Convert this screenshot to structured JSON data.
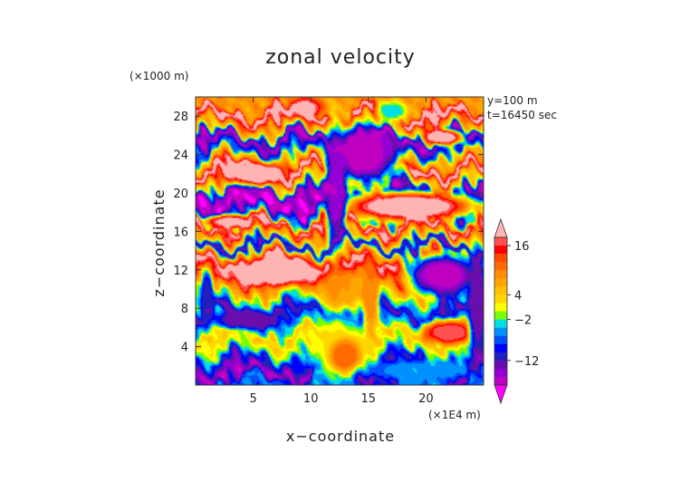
{
  "chart_data": {
    "type": "heatmap",
    "title": "zonal velocity",
    "xlabel": "x−coordinate",
    "ylabel": "z−coordinate",
    "x_unit_label": "(×1E4 m)",
    "y_unit_label": "(×1000 m)",
    "annotations": [
      "y=100 m",
      "t=16450 sec"
    ],
    "xlim": [
      0,
      25
    ],
    "ylim": [
      0,
      30
    ],
    "x_ticks": [
      5,
      10,
      15,
      20
    ],
    "y_ticks": [
      4,
      8,
      12,
      16,
      20,
      24,
      28
    ],
    "colorbar": {
      "tick_labels": [
        "16",
        "4",
        "−2",
        "−12"
      ],
      "tick_values": [
        16,
        4,
        -2,
        -12
      ],
      "levels": [
        22,
        18,
        16,
        14,
        12,
        10,
        8,
        6,
        4,
        2,
        0,
        -2,
        -4,
        -6,
        -8,
        -10,
        -12,
        -14,
        -16,
        -18,
        -22
      ],
      "colors": [
        "#ffb4b4",
        "#ff5050",
        "#ff0000",
        "#ff4a00",
        "#ff6a00",
        "#ff8c00",
        "#ffa500",
        "#ffc000",
        "#ffd700",
        "#ffff00",
        "#7cfc00",
        "#00e0e0",
        "#0090ff",
        "#0050ff",
        "#0000ff",
        "#2020c0",
        "#6a0dad",
        "#9400d3",
        "#c000c0",
        "#ff00ff"
      ],
      "extend": "both"
    },
    "bands": [
      {
        "z": 29.0,
        "v": 8
      },
      {
        "z": 28.0,
        "v": 20
      },
      {
        "z": 26.7,
        "v": 6
      },
      {
        "z": 25.5,
        "v": -16
      },
      {
        "z": 24.5,
        "v": -8
      },
      {
        "z": 23.5,
        "v": 6
      },
      {
        "z": 22.3,
        "v": 20
      },
      {
        "z": 21.2,
        "v": 4
      },
      {
        "z": 20.0,
        "v": -16
      },
      {
        "z": 18.8,
        "v": -18
      },
      {
        "z": 17.6,
        "v": -6
      },
      {
        "z": 16.5,
        "v": 18
      },
      {
        "z": 15.4,
        "v": 6
      },
      {
        "z": 14.5,
        "v": -12
      },
      {
        "z": 13.6,
        "v": 8
      },
      {
        "z": 12.6,
        "v": 20
      },
      {
        "z": 11.5,
        "v": 16
      },
      {
        "z": 10.2,
        "v": 8
      },
      {
        "z": 8.8,
        "v": -2
      },
      {
        "z": 7.5,
        "v": -12
      },
      {
        "z": 6.3,
        "v": -4
      },
      {
        "z": 5.0,
        "v": 4
      },
      {
        "z": 3.8,
        "v": 0
      },
      {
        "z": 2.5,
        "v": -10
      },
      {
        "z": 1.3,
        "v": -16
      },
      {
        "z": 0.2,
        "v": -6
      }
    ],
    "features": [
      {
        "x": 18.5,
        "z": 18.6,
        "rx": 6.5,
        "rz": 1.7,
        "v": 22
      },
      {
        "x": 7.0,
        "z": 11.8,
        "rx": 4.2,
        "rz": 1.6,
        "v": 22
      },
      {
        "x": 5.0,
        "z": 22.0,
        "rx": 3.0,
        "rz": 1.3,
        "v": 22
      },
      {
        "x": 21.5,
        "z": 25.8,
        "rx": 1.8,
        "rz": 0.9,
        "v": 22
      },
      {
        "x": 14.8,
        "z": 24.0,
        "rx": 3.2,
        "rz": 3.4,
        "v": -18
      },
      {
        "x": 12.2,
        "z": 20.5,
        "rx": 1.0,
        "rz": 7.5,
        "v": -16
      },
      {
        "x": 21.5,
        "z": 11.5,
        "rx": 3.5,
        "rz": 2.4,
        "v": -18
      },
      {
        "x": 12.8,
        "z": 10.0,
        "rx": 2.3,
        "rz": 2.2,
        "v": 8
      },
      {
        "x": 15.2,
        "z": 9.5,
        "rx": 0.8,
        "rz": 4.5,
        "v": 10
      },
      {
        "x": 22.0,
        "z": 5.5,
        "rx": 2.6,
        "rz": 1.4,
        "v": 18
      },
      {
        "x": 12.3,
        "z": 4.0,
        "rx": 2.8,
        "rz": 3.5,
        "v": 2
      },
      {
        "x": 13.0,
        "z": 3.0,
        "rx": 1.5,
        "rz": 2.0,
        "v": 12
      },
      {
        "x": 4.5,
        "z": 6.8,
        "rx": 3.2,
        "rz": 1.1,
        "v": -14
      },
      {
        "x": 1.0,
        "z": 9.0,
        "rx": 0.6,
        "rz": 3.5,
        "v": -12
      },
      {
        "x": 19.5,
        "z": 1.5,
        "rx": 5.0,
        "rz": 1.3,
        "v": -4
      },
      {
        "x": 24.5,
        "z": 8.5,
        "rx": 0.9,
        "rz": 7.0,
        "v": -14
      },
      {
        "x": 9.5,
        "z": 28.8,
        "rx": 1.5,
        "rz": 1.2,
        "v": 20
      },
      {
        "x": 17.0,
        "z": 28.5,
        "rx": 1.5,
        "rz": 1.2,
        "v": -4
      },
      {
        "x": 3.0,
        "z": 17.0,
        "rx": 2.5,
        "rz": 0.8,
        "v": 20
      }
    ]
  }
}
